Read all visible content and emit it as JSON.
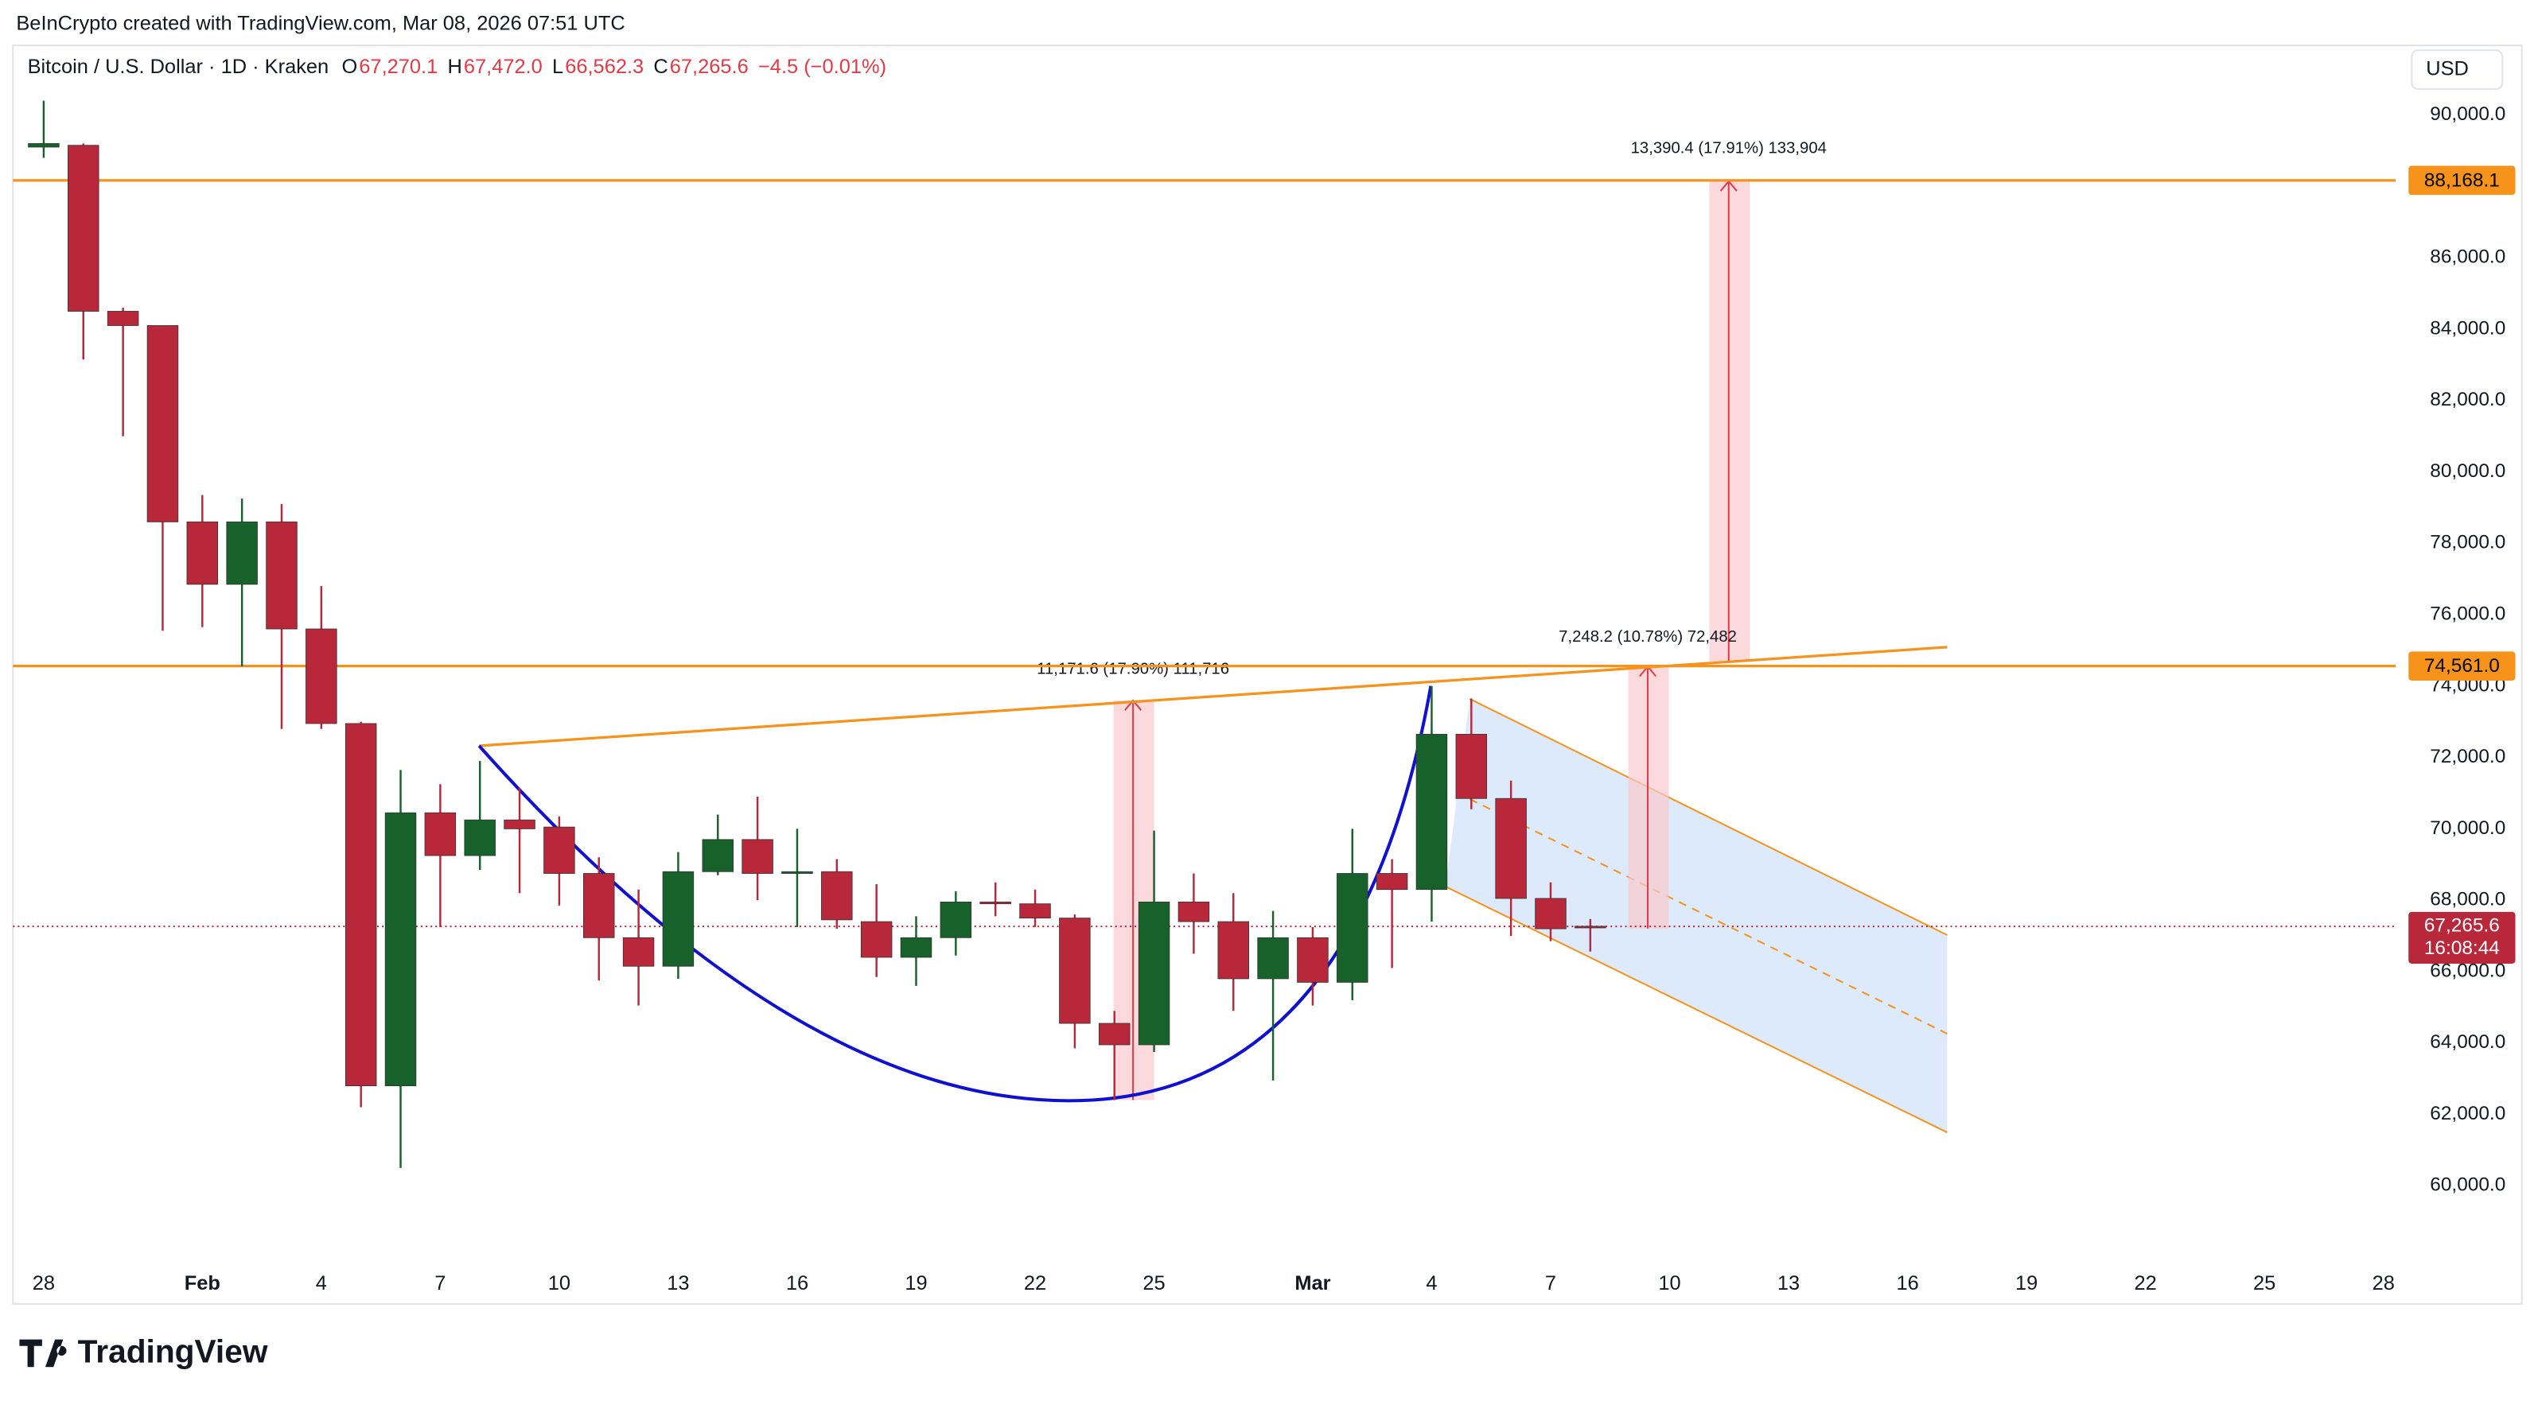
{
  "header": "BeInCrypto created with TradingView.com, Mar 08, 2026 07:51 UTC",
  "legend": {
    "symbol": "Bitcoin / U.S. Dollar · 1D · Kraken",
    "items": [
      {
        "key": "O",
        "value": "67,270.1"
      },
      {
        "key": "H",
        "value": "67,472.0"
      },
      {
        "key": "L",
        "value": "66,562.3"
      },
      {
        "key": "C",
        "value": "67,265.6"
      }
    ],
    "change": "−4.5 (−0.01%)"
  },
  "currency": "USD",
  "brand": "TradingView",
  "chart_data": {
    "type": "candlestick",
    "categories": [
      "28",
      null,
      null,
      null,
      "Feb",
      null,
      null,
      "4",
      null,
      null,
      "7",
      null,
      null,
      "10",
      null,
      null,
      "13",
      null,
      null,
      "16",
      null,
      null,
      "19",
      null,
      null,
      "22",
      null,
      null,
      "25",
      null,
      null,
      null,
      "Mar",
      null,
      null,
      "4",
      null,
      null,
      "7",
      null,
      null,
      "10",
      null,
      null,
      "13",
      null,
      null,
      "16",
      null,
      null,
      "19",
      null,
      null,
      "22",
      null,
      null,
      "25",
      null,
      null,
      "28"
    ],
    "open": [
      89100,
      89150,
      84500,
      84100,
      78600,
      76850,
      78600,
      75600,
      72950,
      62800,
      70450,
      69250,
      70250,
      70050,
      68750,
      66950,
      66150,
      68800,
      69700,
      68750,
      68800,
      67400,
      66400,
      66950,
      67950,
      67900,
      67500,
      64550,
      63950,
      67950,
      67400,
      65800,
      66950,
      65700,
      68750,
      68300,
      72650,
      70850,
      68050,
      67270.1,
      null,
      null,
      null,
      null,
      null,
      null,
      null,
      null,
      null,
      null,
      null,
      null,
      null,
      null,
      null,
      null,
      null,
      null,
      null,
      null
    ],
    "high": [
      90400,
      89200,
      84600,
      84100,
      79350,
      79250,
      79100,
      76800,
      73000,
      71650,
      71250,
      71900,
      71150,
      70350,
      69200,
      68300,
      69350,
      70400,
      70900,
      70000,
      69150,
      68450,
      67550,
      68250,
      68500,
      68300,
      67600,
      64900,
      69950,
      68750,
      68200,
      67700,
      67250,
      70000,
      69150,
      74000,
      73650,
      71350,
      68500,
      67472.0,
      null,
      null,
      null,
      null,
      null,
      null,
      null,
      null,
      null,
      null,
      null,
      null,
      null,
      null,
      null,
      null,
      null,
      null,
      null,
      null
    ],
    "low": [
      88800,
      83150,
      81000,
      75550,
      75650,
      74550,
      72800,
      72800,
      62200,
      60500,
      67250,
      68850,
      68200,
      67850,
      65750,
      65050,
      65800,
      68700,
      68000,
      67250,
      67200,
      65850,
      65600,
      66450,
      67550,
      67250,
      63850,
      62400,
      63750,
      66500,
      64900,
      62950,
      65050,
      65200,
      66100,
      67400,
      70550,
      67000,
      66850,
      66562.3,
      null,
      null,
      null,
      null,
      null,
      null,
      null,
      null,
      null,
      null,
      null,
      null,
      null,
      null,
      null,
      null,
      null,
      null,
      null,
      null
    ],
    "close": [
      89200,
      84500,
      84100,
      78600,
      76850,
      78600,
      75600,
      72950,
      62800,
      70450,
      69250,
      70250,
      70000,
      68750,
      66950,
      66150,
      68800,
      69700,
      68750,
      68800,
      67450,
      66400,
      66950,
      67950,
      67900,
      67500,
      64550,
      63950,
      67950,
      67400,
      65800,
      66950,
      65700,
      68750,
      68300,
      72650,
      70850,
      68050,
      67200,
      67265.6,
      null,
      null,
      null,
      null,
      null,
      null,
      null,
      null,
      null,
      null,
      null,
      null,
      null,
      null,
      null,
      null,
      null,
      null,
      null,
      null
    ],
    "up_color": "#17622a",
    "down_color": "#b8283a",
    "ylim": [
      57960,
      91950
    ],
    "yticks": [
      {
        "value": 60000,
        "label": "60,000.0"
      },
      {
        "value": 62000,
        "label": "62,000.0"
      },
      {
        "value": 64000,
        "label": "64,000.0"
      },
      {
        "value": 66000,
        "label": "66,000.0"
      },
      {
        "value": 68000,
        "label": "68,000.0"
      },
      {
        "value": 70000,
        "label": "70,000.0"
      },
      {
        "value": 72000,
        "label": "72,000.0"
      },
      {
        "value": 74000,
        "label": "74,000.0"
      },
      {
        "value": 76000,
        "label": "76,000.0"
      },
      {
        "value": 78000,
        "label": "78,000.0"
      },
      {
        "value": 80000,
        "label": "80,000.0"
      },
      {
        "value": 82000,
        "label": "82,000.0"
      },
      {
        "value": 84000,
        "label": "84,000.0"
      },
      {
        "value": 86000,
        "label": "86,000.0"
      },
      {
        "value": 88000,
        "label": "88,000.0"
      },
      {
        "value": 90000,
        "label": "90,000.0"
      }
    ],
    "levels": [
      {
        "value": 88168.1,
        "label": "88,168.1",
        "color": "#f7931a"
      },
      {
        "value": 74561.0,
        "label": "74,561.0",
        "color": "#f7931a"
      }
    ],
    "last_price": {
      "value": 67265.6,
      "label": "67,265.6",
      "countdown": "16:08:44",
      "color": "#b8283a"
    },
    "annotations": [
      "13,390.4 (17.91%) 133,904",
      "7,248.2 (10.78%) 72,482",
      "11,171.6 (17.90%) 111,716"
    ]
  }
}
